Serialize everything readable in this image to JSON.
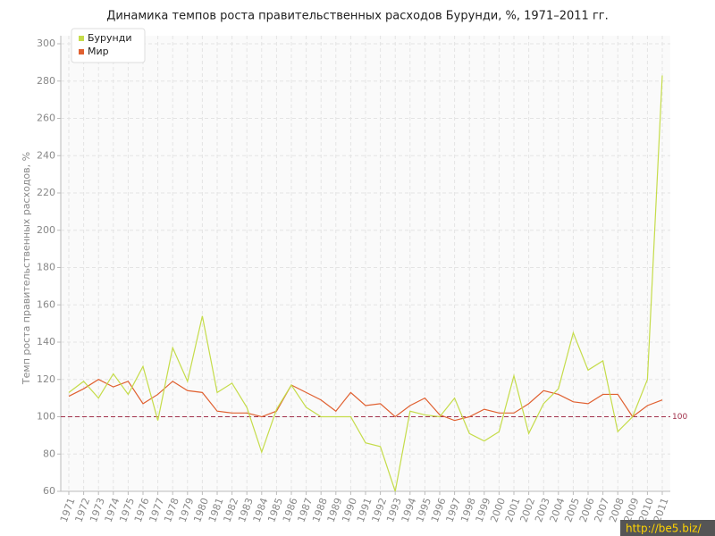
{
  "chart_data": {
    "type": "line",
    "title": "Динамика темпов роста правительственных расходов Бурунди, %, 1971–2011 гг.",
    "y_label": "Темп роста правительственных расходов, %",
    "categories": [
      "1971",
      "1972",
      "1973",
      "1974",
      "1975",
      "1976",
      "1977",
      "1978",
      "1979",
      "1980",
      "1981",
      "1982",
      "1983",
      "1984",
      "1985",
      "1986",
      "1987",
      "1988",
      "1989",
      "1990",
      "1991",
      "1992",
      "1993",
      "1994",
      "1995",
      "1996",
      "1997",
      "1998",
      "1999",
      "2000",
      "2001",
      "2002",
      "2003",
      "2004",
      "2005",
      "2006",
      "2007",
      "2008",
      "2009",
      "2010",
      "2011"
    ],
    "series": [
      {
        "name": "Бурунди",
        "color": "#c5dc4a",
        "values": [
          113,
          119,
          110,
          123,
          112,
          127,
          98,
          137,
          119,
          154,
          113,
          118,
          105,
          81,
          104,
          117,
          105,
          100,
          100,
          100,
          86,
          84,
          60,
          103,
          101,
          100,
          110,
          91,
          87,
          92,
          122,
          91,
          107,
          115,
          145,
          125,
          130,
          92,
          100,
          120,
          283
        ]
      },
      {
        "name": "Мир",
        "color": "#e06030",
        "values": [
          111,
          115,
          120,
          116,
          119,
          107,
          112,
          119,
          114,
          113,
          103,
          102,
          102,
          100,
          103,
          117,
          113,
          109,
          103,
          113,
          106,
          107,
          100,
          106,
          110,
          101,
          98,
          100,
          104,
          102,
          102,
          107,
          114,
          112,
          108,
          107,
          112,
          112,
          100,
          106,
          109
        ]
      }
    ],
    "ylim": [
      60,
      300
    ],
    "yticks": [
      60,
      80,
      100,
      120,
      140,
      160,
      180,
      200,
      220,
      240,
      260,
      280,
      300
    ],
    "grid": true,
    "reference_line": 100,
    "reference_color": "#a0304a",
    "legend": "top-left",
    "watermark": "http://be5.biz/"
  }
}
